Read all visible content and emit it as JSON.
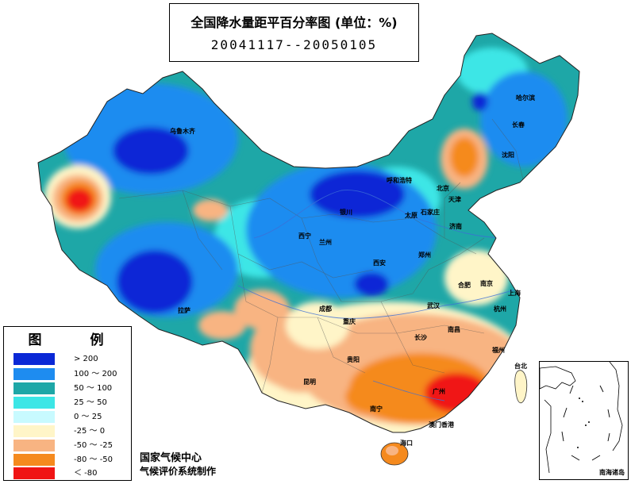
{
  "title": "全国降水量距平百分率图 (单位：%)",
  "period": "20041117--20050105",
  "legend": {
    "heading": "图　例",
    "items": [
      {
        "label": "> 200",
        "color": "#0a28d6"
      },
      {
        "label": "100 ～ 200",
        "color": "#1e8cf0"
      },
      {
        "label": "50 ～ 100",
        "color": "#1ea7a7"
      },
      {
        "label": "25 ～ 50",
        "color": "#3ce6e6"
      },
      {
        "label": "0 ～ 25",
        "color": "#c8faff"
      },
      {
        "label": "-25 ～ 0",
        "color": "#fff5c8"
      },
      {
        "label": "-50 ～ -25",
        "color": "#f8b482"
      },
      {
        "label": "-80 ～ -50",
        "color": "#f58a1e"
      },
      {
        "label": "＜ -80",
        "color": "#f01414"
      }
    ]
  },
  "credits": {
    "org": "国家气候中心",
    "system": "气候评价系统制作"
  },
  "inset_caption": "南海诸岛",
  "cities": [
    {
      "name": "哈尔滨"
    },
    {
      "name": "长春"
    },
    {
      "name": "沈阳"
    },
    {
      "name": "乌鲁木齐"
    },
    {
      "name": "呼和浩特"
    },
    {
      "name": "北京"
    },
    {
      "name": "天津"
    },
    {
      "name": "银川"
    },
    {
      "name": "太原"
    },
    {
      "name": "石家庄"
    },
    {
      "name": "济南"
    },
    {
      "name": "西宁"
    },
    {
      "name": "兰州"
    },
    {
      "name": "西安"
    },
    {
      "name": "郑州"
    },
    {
      "name": "拉萨"
    },
    {
      "name": "成都"
    },
    {
      "name": "重庆"
    },
    {
      "name": "武汉"
    },
    {
      "name": "合肥"
    },
    {
      "name": "南京"
    },
    {
      "name": "上海"
    },
    {
      "name": "杭州"
    },
    {
      "name": "长沙"
    },
    {
      "name": "南昌"
    },
    {
      "name": "福州"
    },
    {
      "name": "贵阳"
    },
    {
      "name": "昆明"
    },
    {
      "name": "南宁"
    },
    {
      "name": "广州"
    },
    {
      "name": "台北"
    },
    {
      "name": "海口"
    },
    {
      "name": "澳门香港"
    }
  ]
}
